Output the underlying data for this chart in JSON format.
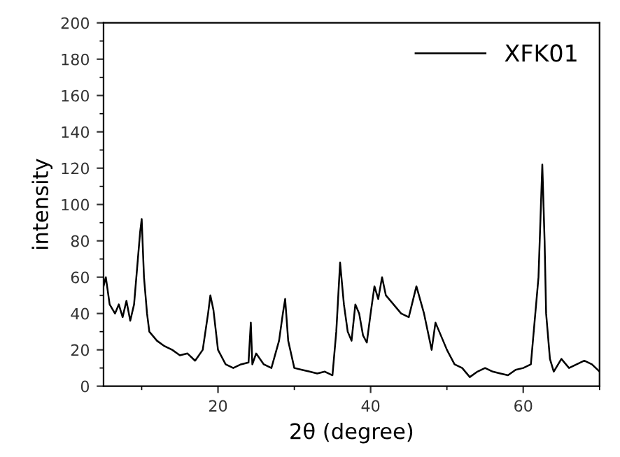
{
  "chart_data": {
    "type": "line",
    "xlabel": "2θ (degree)",
    "ylabel": "intensity",
    "xlim": [
      5,
      70
    ],
    "xticks": [
      20,
      40,
      60
    ],
    "ylim": [
      0,
      200
    ],
    "yticks": [
      0,
      20,
      40,
      60,
      80,
      100,
      120,
      140,
      160,
      180,
      200
    ],
    "legend": "top right",
    "grid": false,
    "series": [
      {
        "name": "XFK01",
        "color": "#000000",
        "x": [
          5,
          5.3,
          5.8,
          6.5,
          7,
          7.5,
          8,
          8.5,
          9,
          9.5,
          9.8,
          10,
          10.3,
          10.7,
          11,
          12,
          13,
          14,
          15,
          16,
          17,
          18,
          18.7,
          19,
          19.4,
          20,
          21,
          22,
          23,
          24,
          24.3,
          24.5,
          25,
          26,
          27,
          28,
          28.5,
          28.8,
          29.2,
          30,
          31,
          32,
          33,
          34,
          35,
          35.5,
          36,
          36.5,
          37,
          37.5,
          38,
          38.5,
          39,
          39.5,
          40,
          40.5,
          41,
          41.5,
          42,
          43,
          44,
          45,
          46,
          47,
          47.5,
          48,
          48.5,
          49,
          50,
          51,
          52,
          53,
          54,
          55,
          56,
          57,
          58,
          59,
          60,
          61,
          62,
          62.5,
          62.8,
          63,
          63.5,
          64,
          65,
          66,
          67,
          68,
          69,
          70
        ],
        "values": [
          55,
          60,
          45,
          40,
          45,
          38,
          47,
          36,
          45,
          70,
          85,
          92,
          60,
          40,
          30,
          25,
          22,
          20,
          17,
          18,
          14,
          20,
          40,
          50,
          42,
          20,
          12,
          10,
          12,
          13,
          35,
          12,
          18,
          12,
          10,
          25,
          40,
          48,
          25,
          10,
          9,
          8,
          7,
          8,
          6,
          30,
          68,
          45,
          30,
          25,
          45,
          40,
          28,
          24,
          40,
          55,
          48,
          60,
          50,
          45,
          40,
          38,
          55,
          40,
          30,
          20,
          35,
          30,
          20,
          12,
          10,
          5,
          8,
          10,
          8,
          7,
          6,
          9,
          10,
          12,
          60,
          122,
          80,
          40,
          15,
          8,
          15,
          10,
          12,
          14,
          12,
          8
        ]
      }
    ]
  }
}
